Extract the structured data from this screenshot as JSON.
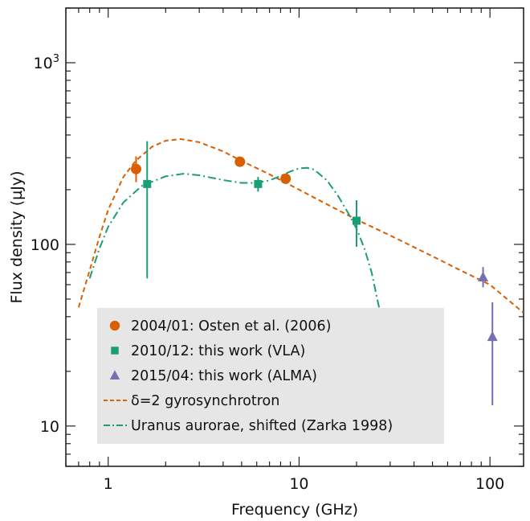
{
  "chart_data": {
    "type": "scatter",
    "title": "",
    "xlabel": "Frequency (GHz)",
    "ylabel": "Flux density (µJy)",
    "xscale": "log",
    "yscale": "log",
    "xlim": [
      0.6,
      150
    ],
    "ylim": [
      6,
      2000
    ],
    "grid": false,
    "legend_position": "lower-left",
    "x_ticks": [
      {
        "value": 1,
        "label": "1"
      },
      {
        "value": 10,
        "label": "10"
      },
      {
        "value": 100,
        "label": "100"
      }
    ],
    "y_ticks": [
      {
        "value": 10,
        "label": "10"
      },
      {
        "value": 100,
        "label": "100"
      },
      {
        "value": 1000,
        "label": "10",
        "sup": "3"
      }
    ],
    "series": [
      {
        "name": "2004/01: Osten et al. (2006)",
        "kind": "points",
        "marker": "circle",
        "color": "#d95f02",
        "points": [
          {
            "x": 1.4,
            "y": 260,
            "ylo": 220,
            "yhi": 305
          },
          {
            "x": 4.9,
            "y": 285
          },
          {
            "x": 8.5,
            "y": 230
          }
        ]
      },
      {
        "name": "2010/12: this work (VLA)",
        "kind": "points",
        "marker": "square",
        "color": "#1b9e77",
        "points": [
          {
            "x": 1.6,
            "y": 215,
            "ylo": 65,
            "yhi": 370
          },
          {
            "x": 6.1,
            "y": 215,
            "ylo": 195,
            "yhi": 235
          },
          {
            "x": 20.0,
            "y": 135,
            "ylo": 97,
            "yhi": 175
          }
        ]
      },
      {
        "name": "2015/04: this work (ALMA)",
        "kind": "points",
        "marker": "triangle",
        "color": "#7570b3",
        "points": [
          {
            "x": 92,
            "y": 66,
            "ylo": 58,
            "yhi": 75
          },
          {
            "x": 103,
            "y": 31,
            "ylo": 13,
            "yhi": 48
          }
        ]
      },
      {
        "name": "δ=2 gyrosynchrotron",
        "kind": "line",
        "dash": "dashed",
        "color": "#d95f02",
        "points": [
          {
            "x": 0.7,
            "y": 45
          },
          {
            "x": 0.8,
            "y": 72
          },
          {
            "x": 0.9,
            "y": 110
          },
          {
            "x": 1.0,
            "y": 155
          },
          {
            "x": 1.2,
            "y": 235
          },
          {
            "x": 1.4,
            "y": 290
          },
          {
            "x": 1.7,
            "y": 345
          },
          {
            "x": 2.0,
            "y": 372
          },
          {
            "x": 2.4,
            "y": 380
          },
          {
            "x": 3.0,
            "y": 365
          },
          {
            "x": 4.0,
            "y": 325
          },
          {
            "x": 5.0,
            "y": 288
          },
          {
            "x": 7.0,
            "y": 243
          },
          {
            "x": 10.0,
            "y": 200
          },
          {
            "x": 15.0,
            "y": 160
          },
          {
            "x": 20.0,
            "y": 137
          },
          {
            "x": 30.0,
            "y": 112
          },
          {
            "x": 50.0,
            "y": 86
          },
          {
            "x": 70.0,
            "y": 72
          },
          {
            "x": 100.0,
            "y": 60
          },
          {
            "x": 150.0,
            "y": 42
          }
        ]
      },
      {
        "name": "Uranus aurorae, shifted (Zarka 1998)",
        "kind": "line",
        "dash": "dashdot",
        "color": "#1b9e77",
        "points": [
          {
            "x": 0.8,
            "y": 65
          },
          {
            "x": 0.9,
            "y": 95
          },
          {
            "x": 1.0,
            "y": 125
          },
          {
            "x": 1.2,
            "y": 170
          },
          {
            "x": 1.5,
            "y": 210
          },
          {
            "x": 2.0,
            "y": 237
          },
          {
            "x": 2.5,
            "y": 245
          },
          {
            "x": 3.0,
            "y": 240
          },
          {
            "x": 4.0,
            "y": 226
          },
          {
            "x": 5.0,
            "y": 218
          },
          {
            "x": 6.0,
            "y": 218
          },
          {
            "x": 7.0,
            "y": 225
          },
          {
            "x": 8.0,
            "y": 238
          },
          {
            "x": 9.0,
            "y": 252
          },
          {
            "x": 10.0,
            "y": 262
          },
          {
            "x": 11.0,
            "y": 264
          },
          {
            "x": 12.0,
            "y": 258
          },
          {
            "x": 14.0,
            "y": 225
          },
          {
            "x": 16.0,
            "y": 185
          },
          {
            "x": 18.0,
            "y": 150
          },
          {
            "x": 20.0,
            "y": 122
          },
          {
            "x": 22.0,
            "y": 95
          },
          {
            "x": 24.0,
            "y": 70
          },
          {
            "x": 26.0,
            "y": 47
          },
          {
            "x": 27.0,
            "y": 40
          }
        ]
      }
    ]
  }
}
